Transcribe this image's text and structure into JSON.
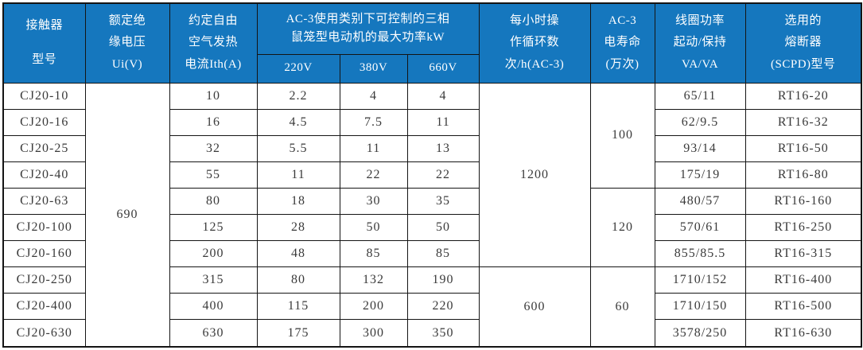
{
  "colors": {
    "header_bg": "#1577be",
    "header_text": "#ffffff",
    "border": "#141414",
    "cell_text": "#3a3a3a"
  },
  "table": {
    "headers": {
      "model": "接触器\n型号",
      "insulation_voltage": "额定绝\n缘电压\nUi(V)",
      "thermal_current": "约定自由\n空气发热\n电流Ith(A)",
      "max_power_group": "AC-3使用类别下可控制的三相\n鼠笼型电动机的最大功率kW",
      "v220": "220V",
      "v380": "380V",
      "v660": "660V",
      "cycles_per_hour": "每小时操\n作循环数\n次/h(AC-3)",
      "electrical_life": "AC-3\n电寿命\n(万次)",
      "coil_power": "线圈功率\n起动/保持\nVA/VA",
      "fuse": "选用的\n熔断器\n(SCPD)型号"
    },
    "rows": [
      [
        {
          "k": "model",
          "t": "CJ20-10"
        },
        {
          "k": "ui",
          "t": "690",
          "rs": 10
        },
        {
          "k": "ith",
          "t": "10"
        },
        {
          "k": "kw220",
          "t": "2.2"
        },
        {
          "k": "kw380",
          "t": "4"
        },
        {
          "k": "kw660",
          "t": "4"
        },
        {
          "k": "cycles",
          "t": "1200",
          "rs": 7
        },
        {
          "k": "life",
          "t": "100",
          "rs": 4
        },
        {
          "k": "coil",
          "t": "65/11"
        },
        {
          "k": "fuse",
          "t": "RT16-20"
        }
      ],
      [
        {
          "k": "model",
          "t": "CJ20-16"
        },
        {
          "k": "ith",
          "t": "16"
        },
        {
          "k": "kw220",
          "t": "4.5"
        },
        {
          "k": "kw380",
          "t": "7.5"
        },
        {
          "k": "kw660",
          "t": "11"
        },
        {
          "k": "coil",
          "t": "62/9.5"
        },
        {
          "k": "fuse",
          "t": "RT16-32"
        }
      ],
      [
        {
          "k": "model",
          "t": "CJ20-25"
        },
        {
          "k": "ith",
          "t": "32"
        },
        {
          "k": "kw220",
          "t": "5.5"
        },
        {
          "k": "kw380",
          "t": "11"
        },
        {
          "k": "kw660",
          "t": "13"
        },
        {
          "k": "coil",
          "t": "93/14"
        },
        {
          "k": "fuse",
          "t": "RT16-50"
        }
      ],
      [
        {
          "k": "model",
          "t": "CJ20-40"
        },
        {
          "k": "ith",
          "t": "55"
        },
        {
          "k": "kw220",
          "t": "11"
        },
        {
          "k": "kw380",
          "t": "22"
        },
        {
          "k": "kw660",
          "t": "22"
        },
        {
          "k": "coil",
          "t": "175/19"
        },
        {
          "k": "fuse",
          "t": "RT16-80"
        }
      ],
      [
        {
          "k": "model",
          "t": "CJ20-63"
        },
        {
          "k": "ith",
          "t": "80"
        },
        {
          "k": "kw220",
          "t": "18"
        },
        {
          "k": "kw380",
          "t": "30"
        },
        {
          "k": "kw660",
          "t": "35"
        },
        {
          "k": "life",
          "t": "120",
          "rs": 3
        },
        {
          "k": "coil",
          "t": "480/57"
        },
        {
          "k": "fuse",
          "t": "RT16-160"
        }
      ],
      [
        {
          "k": "model",
          "t": "CJ20-100"
        },
        {
          "k": "ith",
          "t": "125"
        },
        {
          "k": "kw220",
          "t": "28"
        },
        {
          "k": "kw380",
          "t": "50"
        },
        {
          "k": "kw660",
          "t": "50"
        },
        {
          "k": "coil",
          "t": "570/61"
        },
        {
          "k": "fuse",
          "t": "RT16-250"
        }
      ],
      [
        {
          "k": "model",
          "t": "CJ20-160"
        },
        {
          "k": "ith",
          "t": "200"
        },
        {
          "k": "kw220",
          "t": "48"
        },
        {
          "k": "kw380",
          "t": "85"
        },
        {
          "k": "kw660",
          "t": "85"
        },
        {
          "k": "coil",
          "t": "855/85.5"
        },
        {
          "k": "fuse",
          "t": "RT16-315"
        }
      ],
      [
        {
          "k": "model",
          "t": "CJ20-250"
        },
        {
          "k": "ith",
          "t": "315"
        },
        {
          "k": "kw220",
          "t": "80"
        },
        {
          "k": "kw380",
          "t": "132"
        },
        {
          "k": "kw660",
          "t": "190"
        },
        {
          "k": "cycles",
          "t": "600",
          "rs": 3
        },
        {
          "k": "life",
          "t": "60",
          "rs": 3
        },
        {
          "k": "coil",
          "t": "1710/152"
        },
        {
          "k": "fuse",
          "t": "RT16-400"
        }
      ],
      [
        {
          "k": "model",
          "t": "CJ20-400"
        },
        {
          "k": "ith",
          "t": "400"
        },
        {
          "k": "kw220",
          "t": "115"
        },
        {
          "k": "kw380",
          "t": "200"
        },
        {
          "k": "kw660",
          "t": "220"
        },
        {
          "k": "coil",
          "t": "1710/150"
        },
        {
          "k": "fuse",
          "t": "RT16-500"
        }
      ],
      [
        {
          "k": "model",
          "t": "CJ20-630"
        },
        {
          "k": "ith",
          "t": "630"
        },
        {
          "k": "kw220",
          "t": "175"
        },
        {
          "k": "kw380",
          "t": "300"
        },
        {
          "k": "kw660",
          "t": "350"
        },
        {
          "k": "coil",
          "t": "3578/250"
        },
        {
          "k": "fuse",
          "t": "RT16-630"
        }
      ]
    ]
  }
}
